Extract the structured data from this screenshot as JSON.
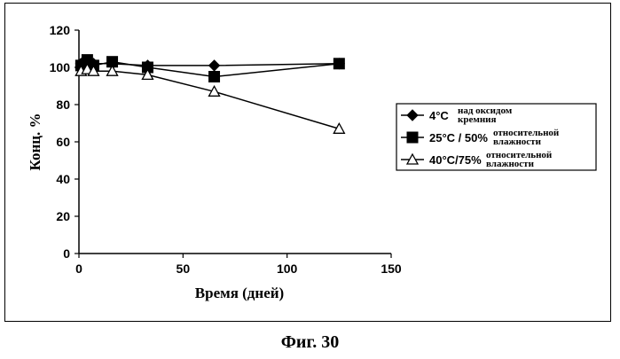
{
  "figure_caption": "Фиг. 30",
  "chart_data": {
    "type": "line",
    "title": "",
    "xlabel": "Время (дней)",
    "ylabel": "Конц. %",
    "xlim": [
      0,
      150
    ],
    "ylim": [
      0,
      120
    ],
    "xticks": [
      0,
      50,
      100,
      150
    ],
    "yticks": [
      0,
      20,
      40,
      60,
      80,
      100,
      120
    ],
    "grid": false,
    "legend_position": "right",
    "series": [
      {
        "name_main": "4°C",
        "name_sup_line1": "над оксидом",
        "name_sup_line2": "кремния",
        "marker": "diamond",
        "color": "#000000",
        "x": [
          1,
          4,
          7,
          16,
          33,
          65,
          125
        ],
        "y": [
          102,
          103,
          102,
          102,
          101,
          101,
          102
        ]
      },
      {
        "name_main": "25°C / 50%",
        "name_sup_line1": "относительной",
        "name_sup_line2": "влажности",
        "marker": "square",
        "color": "#000000",
        "x": [
          1,
          4,
          7,
          16,
          33,
          65,
          125
        ],
        "y": [
          101,
          104,
          101,
          103,
          100,
          95,
          102
        ]
      },
      {
        "name_main": "40°C/75%",
        "name_sup_line1": "относительной",
        "name_sup_line2": "влажности",
        "marker": "triangle-open",
        "color": "#000000",
        "x": [
          1,
          4,
          7,
          16,
          33,
          65,
          125
        ],
        "y": [
          98,
          99,
          98,
          98,
          96,
          87,
          67
        ]
      }
    ]
  }
}
